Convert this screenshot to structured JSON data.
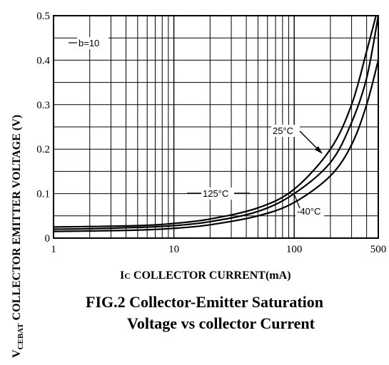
{
  "chart_data": {
    "type": "line",
    "x_scale": "log",
    "xlim": [
      1,
      500
    ],
    "ylim": [
      0,
      0.5
    ],
    "grid": true,
    "x_ticks": [
      "1",
      "10",
      "100",
      "500"
    ],
    "y_ticks": [
      "0",
      "0.1",
      "0.2",
      "0.3",
      "0.4",
      "0.5"
    ],
    "xlabel_parts": {
      "main": "I",
      "sub": "C",
      "rest": " COLLECTOR CURRENT(mA)"
    },
    "ylabel_parts": {
      "main": "V",
      "sub": "CEBAT",
      "rest": " COLLECTOR EMITTER VOLTAGE (V)"
    },
    "annotations": {
      "beta": "b=10",
      "t125": "125°C",
      "t25": "25°C",
      "tm40": "-40°C"
    },
    "series": [
      {
        "label_key": "t125",
        "x": [
          1,
          2,
          5,
          10,
          20,
          50,
          100,
          200,
          300,
          400,
          500
        ],
        "y": [
          0.015,
          0.016,
          0.018,
          0.022,
          0.03,
          0.05,
          0.08,
          0.14,
          0.21,
          0.3,
          0.4
        ]
      },
      {
        "label_key": "t25",
        "x": [
          1,
          2,
          5,
          10,
          20,
          50,
          100,
          200,
          300,
          400,
          500
        ],
        "y": [
          0.02,
          0.021,
          0.024,
          0.028,
          0.037,
          0.06,
          0.1,
          0.17,
          0.26,
          0.36,
          0.5
        ]
      },
      {
        "label_key": "tm40",
        "x": [
          1,
          2,
          5,
          10,
          20,
          50,
          100,
          200,
          300,
          400,
          500
        ],
        "y": [
          0.025,
          0.026,
          0.028,
          0.033,
          0.043,
          0.068,
          0.11,
          0.2,
          0.3,
          0.42,
          0.52
        ]
      }
    ]
  },
  "caption": {
    "line1": "FIG.2 Collector-Emitter Saturation",
    "line2": "Voltage vs collector Current"
  }
}
